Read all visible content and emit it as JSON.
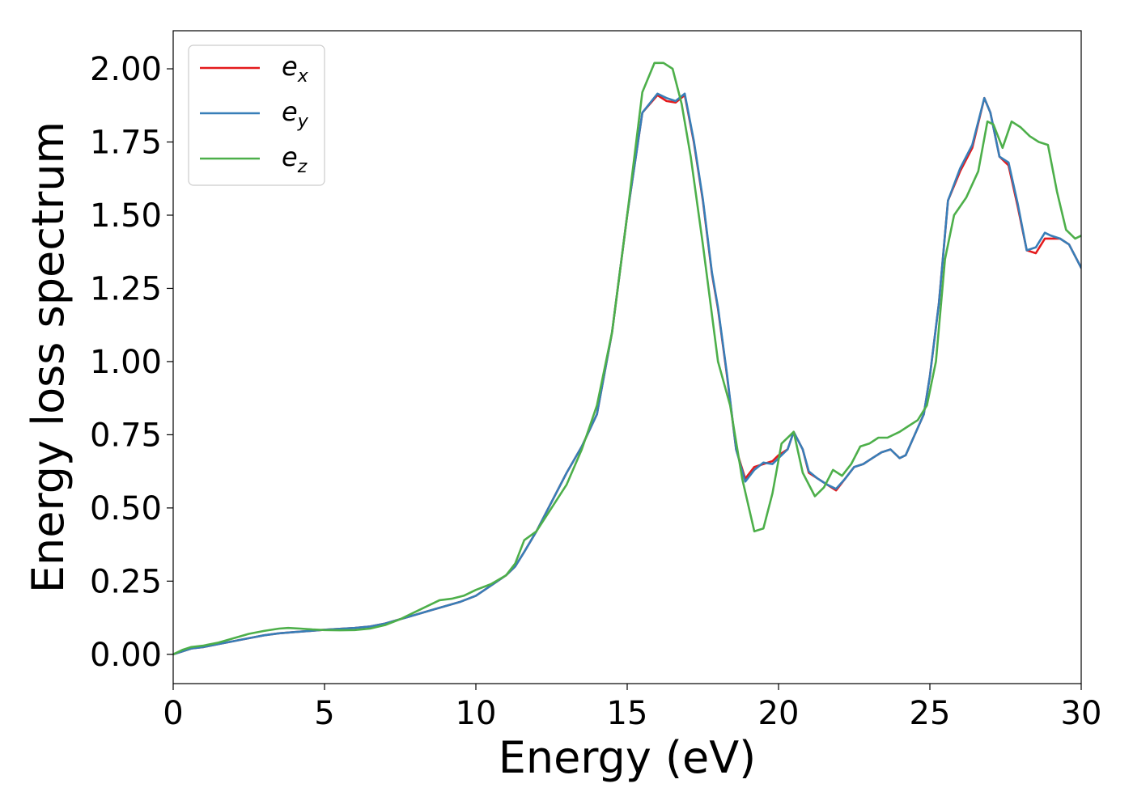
{
  "chart_data": {
    "type": "line",
    "title": "",
    "xlabel": "Energy (eV)",
    "ylabel": "Energy loss spectrum",
    "xlim": [
      0,
      30
    ],
    "ylim": [
      -0.1,
      2.13
    ],
    "xticks": [
      0,
      5,
      10,
      15,
      20,
      25,
      30
    ],
    "xtick_labels": [
      "0",
      "5",
      "10",
      "15",
      "20",
      "25",
      "30"
    ],
    "yticks": [
      0,
      0.25,
      0.5,
      0.75,
      1.0,
      1.25,
      1.5,
      1.75,
      2.0
    ],
    "ytick_labels": [
      "0.00",
      "0.25",
      "0.50",
      "0.75",
      "1.00",
      "1.25",
      "1.50",
      "1.75",
      "2.00"
    ],
    "grid": false,
    "legend_position": "top-left",
    "series": [
      {
        "name": "e_x",
        "legend_base": "e",
        "legend_sub": "x",
        "color": "#e41a1c",
        "x": [
          0,
          0.3,
          0.6,
          1.0,
          1.5,
          2.0,
          2.5,
          3.0,
          3.5,
          4.0,
          4.5,
          5.0,
          5.5,
          6.0,
          6.5,
          7.0,
          7.5,
          8.0,
          8.5,
          9.0,
          9.5,
          10.0,
          10.5,
          11.0,
          11.3,
          11.6,
          12.0,
          12.5,
          13.0,
          13.5,
          14.0,
          14.5,
          15.0,
          15.5,
          16.0,
          16.3,
          16.6,
          16.9,
          17.2,
          17.5,
          17.8,
          18.0,
          18.3,
          18.6,
          18.9,
          19.2,
          19.5,
          19.8,
          20.0,
          20.3,
          20.5,
          20.8,
          21.0,
          21.3,
          21.6,
          21.9,
          22.2,
          22.5,
          22.8,
          23.1,
          23.4,
          23.7,
          24.0,
          24.2,
          24.5,
          24.8,
          25.0,
          25.3,
          25.6,
          26.0,
          26.4,
          26.8,
          27.0,
          27.3,
          27.6,
          27.9,
          28.2,
          28.5,
          28.8,
          29.0,
          29.3,
          29.6,
          30.0
        ],
        "y": [
          0.0,
          0.01,
          0.02,
          0.025,
          0.035,
          0.045,
          0.055,
          0.065,
          0.072,
          0.076,
          0.08,
          0.084,
          0.087,
          0.09,
          0.095,
          0.105,
          0.12,
          0.135,
          0.15,
          0.165,
          0.18,
          0.2,
          0.235,
          0.27,
          0.3,
          0.35,
          0.42,
          0.52,
          0.62,
          0.71,
          0.82,
          1.1,
          1.5,
          1.85,
          1.91,
          1.89,
          1.885,
          1.91,
          1.75,
          1.55,
          1.3,
          1.18,
          0.95,
          0.7,
          0.6,
          0.64,
          0.65,
          0.66,
          0.68,
          0.7,
          0.76,
          0.7,
          0.62,
          0.6,
          0.58,
          0.56,
          0.6,
          0.64,
          0.65,
          0.67,
          0.69,
          0.7,
          0.67,
          0.68,
          0.75,
          0.82,
          0.95,
          1.2,
          1.55,
          1.65,
          1.73,
          1.9,
          1.85,
          1.7,
          1.67,
          1.53,
          1.38,
          1.37,
          1.42,
          1.42,
          1.42,
          1.4,
          1.32
        ]
      },
      {
        "name": "e_y",
        "legend_base": "e",
        "legend_sub": "y",
        "color": "#377eb8",
        "x": [
          0,
          0.3,
          0.6,
          1.0,
          1.5,
          2.0,
          2.5,
          3.0,
          3.5,
          4.0,
          4.5,
          5.0,
          5.5,
          6.0,
          6.5,
          7.0,
          7.5,
          8.0,
          8.5,
          9.0,
          9.5,
          10.0,
          10.5,
          11.0,
          11.3,
          11.6,
          12.0,
          12.5,
          13.0,
          13.5,
          14.0,
          14.5,
          15.0,
          15.5,
          16.0,
          16.3,
          16.6,
          16.9,
          17.2,
          17.5,
          17.8,
          18.0,
          18.3,
          18.6,
          18.9,
          19.2,
          19.5,
          19.8,
          20.0,
          20.3,
          20.5,
          20.8,
          21.0,
          21.3,
          21.6,
          21.9,
          22.2,
          22.5,
          22.8,
          23.1,
          23.4,
          23.7,
          24.0,
          24.2,
          24.5,
          24.8,
          25.0,
          25.3,
          25.6,
          26.0,
          26.4,
          26.8,
          27.0,
          27.3,
          27.6,
          27.9,
          28.2,
          28.5,
          28.8,
          29.0,
          29.3,
          29.6,
          30.0
        ],
        "y": [
          0.0,
          0.01,
          0.02,
          0.025,
          0.035,
          0.045,
          0.055,
          0.065,
          0.072,
          0.076,
          0.08,
          0.084,
          0.087,
          0.09,
          0.095,
          0.105,
          0.12,
          0.135,
          0.15,
          0.165,
          0.18,
          0.2,
          0.235,
          0.27,
          0.3,
          0.35,
          0.42,
          0.52,
          0.62,
          0.71,
          0.82,
          1.1,
          1.5,
          1.85,
          1.915,
          1.9,
          1.89,
          1.915,
          1.755,
          1.555,
          1.305,
          1.185,
          0.955,
          0.7,
          0.59,
          0.63,
          0.655,
          0.65,
          0.67,
          0.7,
          0.76,
          0.7,
          0.625,
          0.6,
          0.58,
          0.565,
          0.6,
          0.64,
          0.65,
          0.67,
          0.69,
          0.7,
          0.67,
          0.68,
          0.75,
          0.82,
          0.95,
          1.2,
          1.55,
          1.66,
          1.74,
          1.9,
          1.85,
          1.7,
          1.68,
          1.54,
          1.38,
          1.39,
          1.44,
          1.43,
          1.42,
          1.4,
          1.32
        ]
      },
      {
        "name": "e_z",
        "legend_base": "e",
        "legend_sub": "z",
        "color": "#4daf4a",
        "x": [
          0,
          0.3,
          0.6,
          1.0,
          1.5,
          2.0,
          2.5,
          3.0,
          3.5,
          3.8,
          4.2,
          4.6,
          5.0,
          5.5,
          6.0,
          6.5,
          7.0,
          7.5,
          8.0,
          8.5,
          8.8,
          9.2,
          9.6,
          10.0,
          10.5,
          11.0,
          11.3,
          11.6,
          12.0,
          12.5,
          13.0,
          13.5,
          14.0,
          14.5,
          15.0,
          15.5,
          15.9,
          16.2,
          16.5,
          16.8,
          17.1,
          17.5,
          18.0,
          18.4,
          18.8,
          19.2,
          19.5,
          19.8,
          20.1,
          20.5,
          20.8,
          21.2,
          21.5,
          21.8,
          22.1,
          22.4,
          22.7,
          23.0,
          23.3,
          23.6,
          24.0,
          24.3,
          24.6,
          24.9,
          25.2,
          25.5,
          25.8,
          26.2,
          26.6,
          26.9,
          27.1,
          27.4,
          27.7,
          28.0,
          28.3,
          28.6,
          28.9,
          29.2,
          29.5,
          29.8,
          30.0
        ],
        "y": [
          0.0,
          0.015,
          0.025,
          0.03,
          0.04,
          0.055,
          0.07,
          0.08,
          0.088,
          0.09,
          0.088,
          0.085,
          0.083,
          0.082,
          0.083,
          0.088,
          0.1,
          0.12,
          0.145,
          0.17,
          0.185,
          0.19,
          0.2,
          0.22,
          0.24,
          0.27,
          0.31,
          0.39,
          0.42,
          0.5,
          0.58,
          0.7,
          0.85,
          1.1,
          1.5,
          1.92,
          2.02,
          2.02,
          2.0,
          1.88,
          1.7,
          1.4,
          1.0,
          0.85,
          0.6,
          0.42,
          0.43,
          0.55,
          0.72,
          0.76,
          0.62,
          0.54,
          0.57,
          0.63,
          0.61,
          0.65,
          0.71,
          0.72,
          0.74,
          0.74,
          0.76,
          0.78,
          0.8,
          0.85,
          1.0,
          1.35,
          1.5,
          1.56,
          1.65,
          1.82,
          1.81,
          1.73,
          1.82,
          1.8,
          1.77,
          1.75,
          1.74,
          1.58,
          1.45,
          1.42,
          1.43
        ]
      }
    ]
  }
}
